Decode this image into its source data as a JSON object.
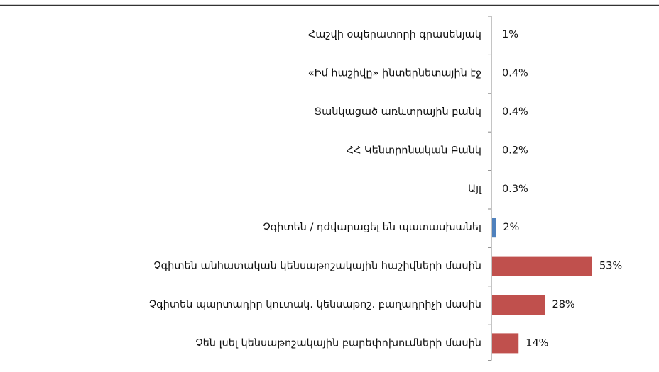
{
  "chart_data": {
    "type": "bar",
    "orientation": "horizontal",
    "title": "",
    "xlabel": "",
    "ylabel": "",
    "grid": false,
    "legend": "none",
    "categories": [
      "Հաշվի օպերատորի գրասենյակ",
      "«Իմ հաշիվը» ինտերնետային էջ",
      "Ցանկացած առևտրային բանկ",
      "ՀՀ Կենտրոնական Բանկ",
      "Այլ",
      "Չգիտեն / դժվարացել են պատասխանել",
      "Չգիտեն անհատական կենսաթոշակային հաշիվների մասին",
      "Չգիտեն պարտադիր կուտակ. կենսաթոշ. բաղադրիչի մասին",
      "Չեն լսել կենսաթոշակային բարեփոխումների մասին"
    ],
    "values": [
      1,
      0.4,
      0.4,
      0.2,
      0.3,
      2,
      53,
      28,
      14
    ],
    "value_labels": [
      "1%",
      "0.4%",
      "0.4%",
      "0.2%",
      "0.3%",
      "2%",
      "53%",
      "28%",
      "14%"
    ],
    "bar_colors": [
      "#ffffff",
      "#ffffff",
      "#ffffff",
      "#ffffff",
      "#ffffff",
      "#4f81bd",
      "#c0504d",
      "#c0504d",
      "#c0504d"
    ],
    "xlim": [
      0,
      60
    ]
  }
}
